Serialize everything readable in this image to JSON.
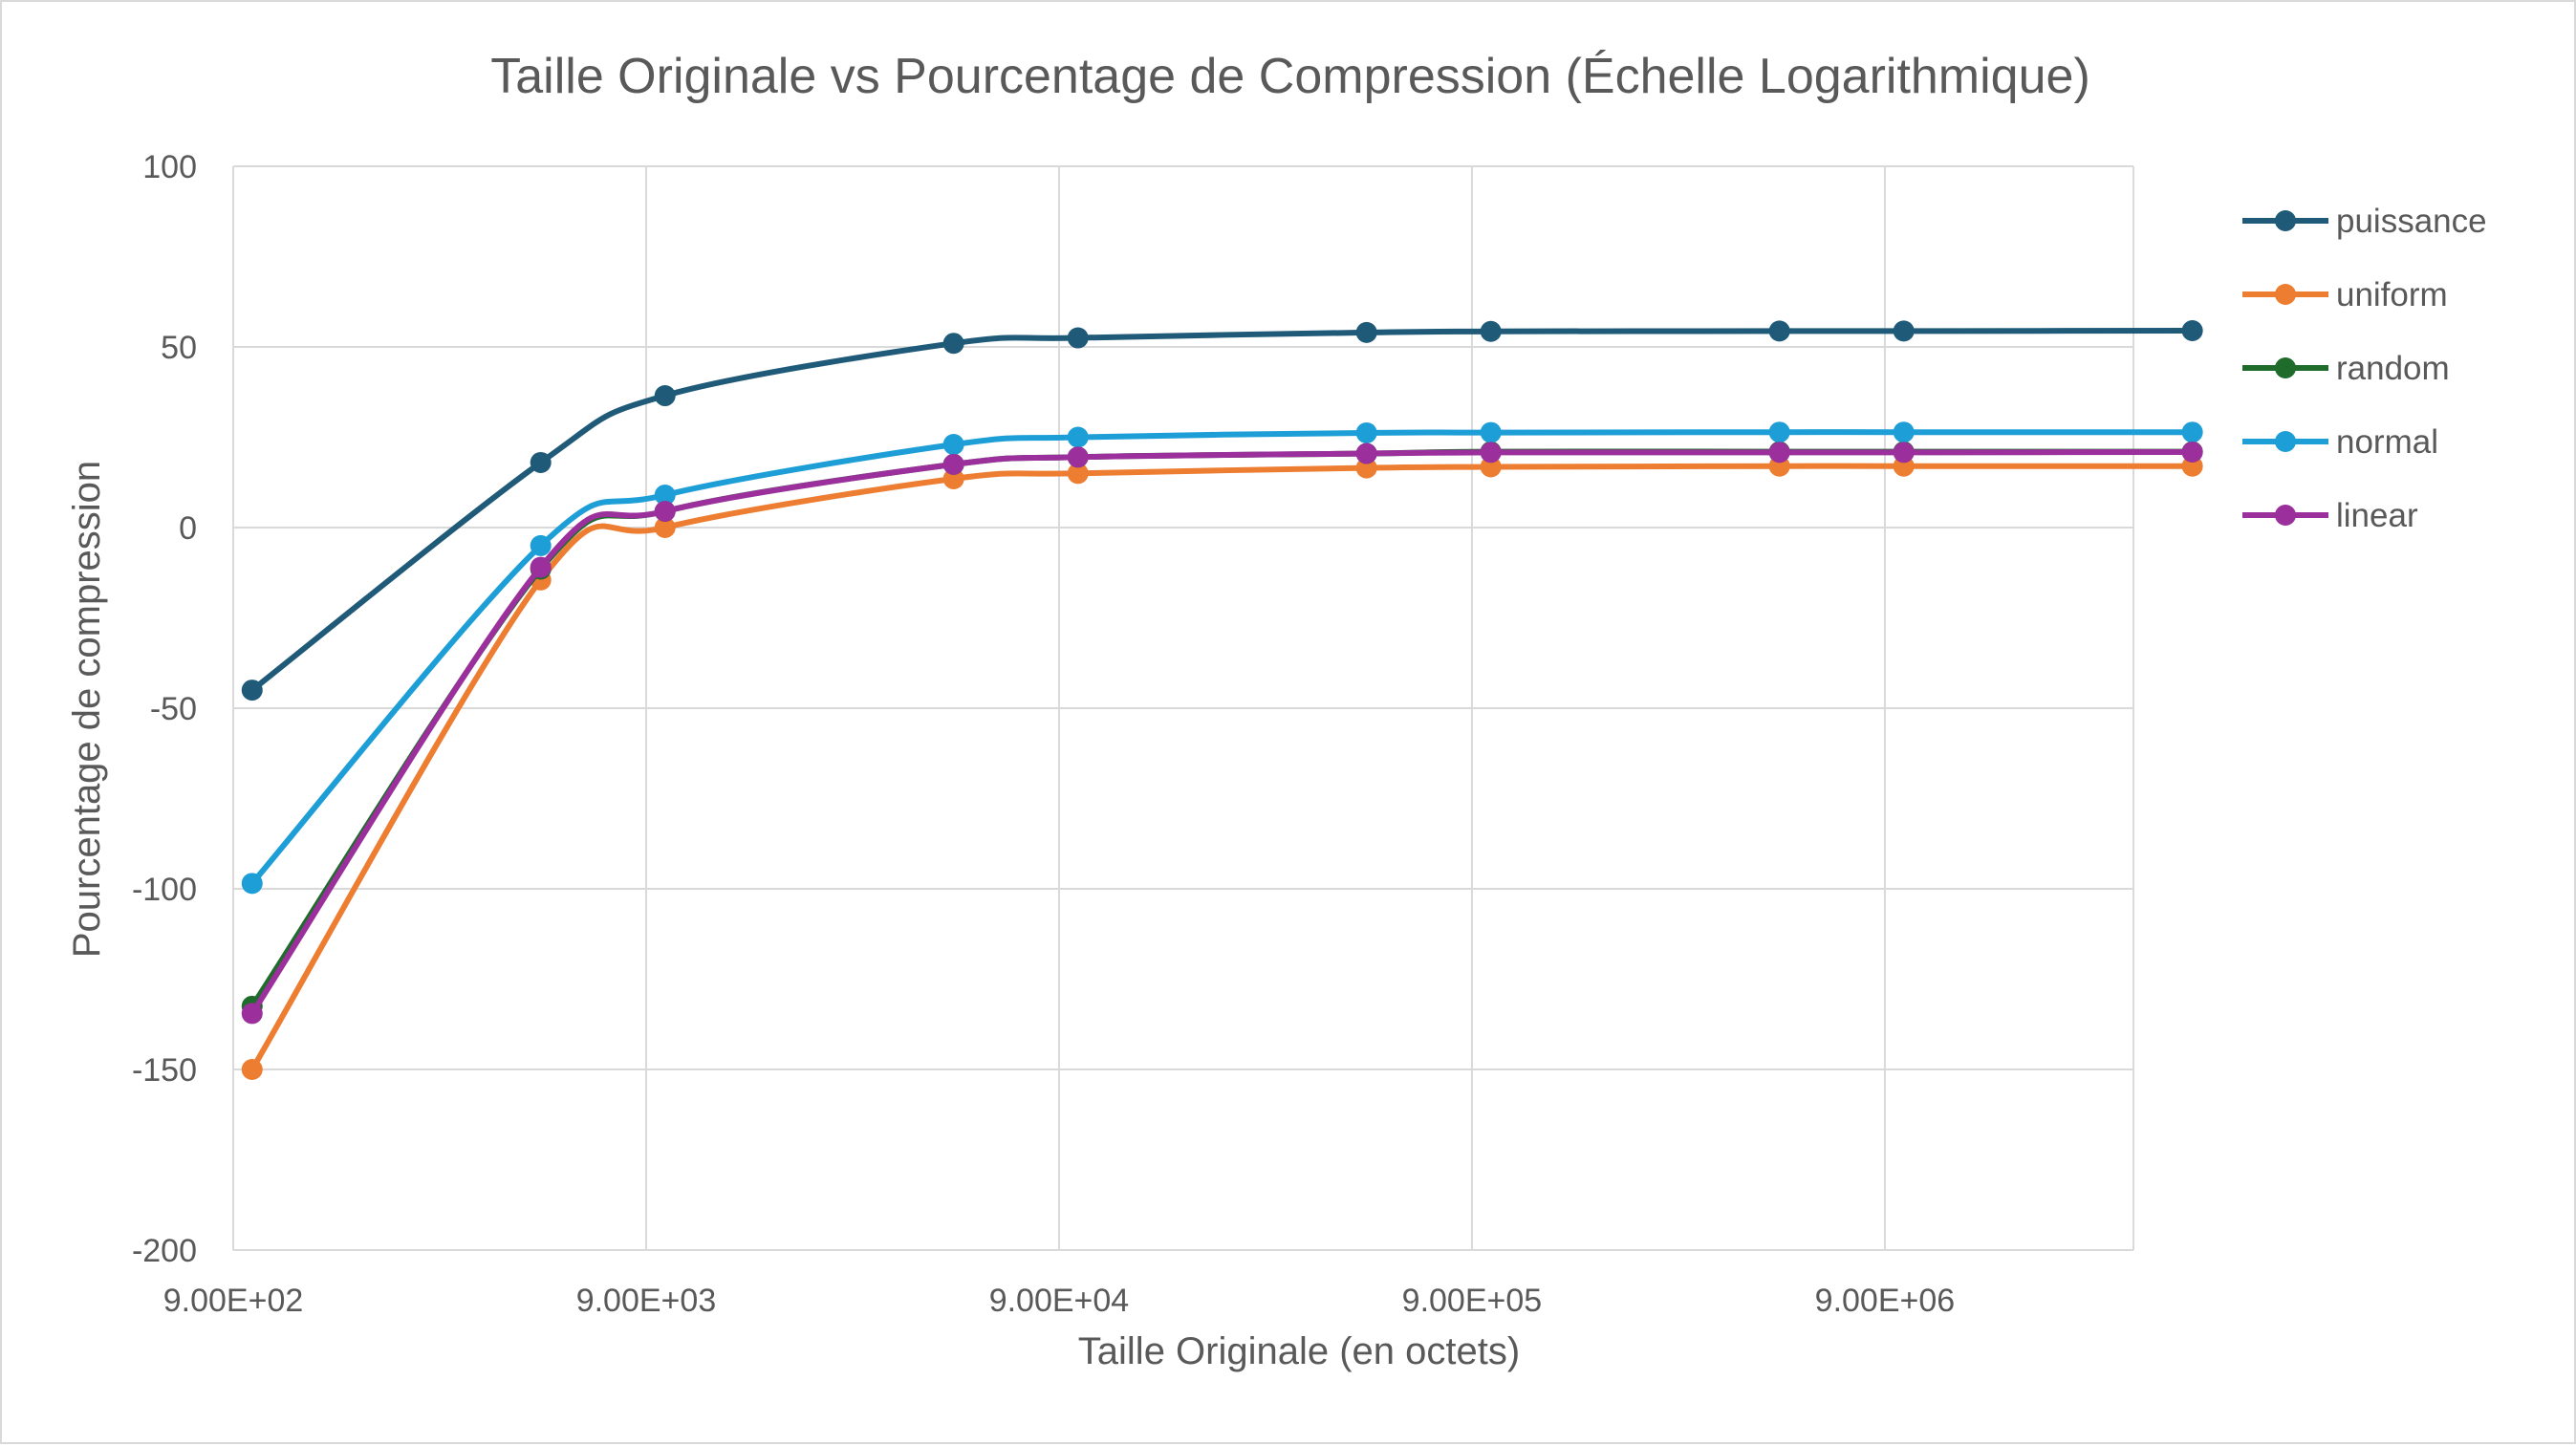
{
  "chart_data": {
    "type": "line",
    "title": "Taille Originale vs Pourcentage de Compression (Échelle Logarithmique)",
    "xlabel": "Taille Originale (en octets)",
    "ylabel": "Pourcentage de compression",
    "x_scale": "log",
    "xlim": [
      900,
      36000000
    ],
    "ylim": [
      -200,
      100
    ],
    "y_ticks": [
      100,
      50,
      0,
      -50,
      -100,
      -150,
      -200
    ],
    "y_tick_labels": [
      "100",
      "50",
      "0",
      "-50",
      "-100",
      "-150",
      "-200"
    ],
    "x_ticks": [
      900,
      9000,
      90000,
      900000,
      9000000
    ],
    "x_tick_labels": [
      "9.00E+02",
      "9.00E+03",
      "9.00E+04",
      "9.00E+05",
      "9.00E+06"
    ],
    "grid": true,
    "legend_position": "right",
    "x": [
      1000,
      5000,
      10000,
      50000,
      100000,
      500000,
      1000000,
      5000000,
      10000000,
      50000000
    ],
    "series": [
      {
        "name": "puissance",
        "color": "#1f5a78",
        "values": [
          -45,
          18,
          36.5,
          51,
          52.5,
          54,
          54.3,
          54.4,
          54.4,
          54.5
        ]
      },
      {
        "name": "uniform",
        "color": "#ed7d31",
        "values": [
          -150,
          -14.5,
          0,
          13.5,
          15,
          16.5,
          16.8,
          17,
          17,
          17
        ]
      },
      {
        "name": "random",
        "color": "#1e6b2c",
        "values": [
          -132.5,
          -11.5,
          4.5,
          17.5,
          19.5,
          20.5,
          21,
          21,
          21,
          21
        ]
      },
      {
        "name": "normal",
        "color": "#1e9ed6",
        "values": [
          -98.5,
          -5,
          9,
          23,
          25,
          26.2,
          26.3,
          26.4,
          26.4,
          26.4
        ]
      },
      {
        "name": "linear",
        "color": "#9b2f9b",
        "values": [
          -134.5,
          -11,
          4.5,
          17.5,
          19.5,
          20.5,
          20.8,
          20.8,
          20.8,
          20.9
        ]
      }
    ]
  }
}
